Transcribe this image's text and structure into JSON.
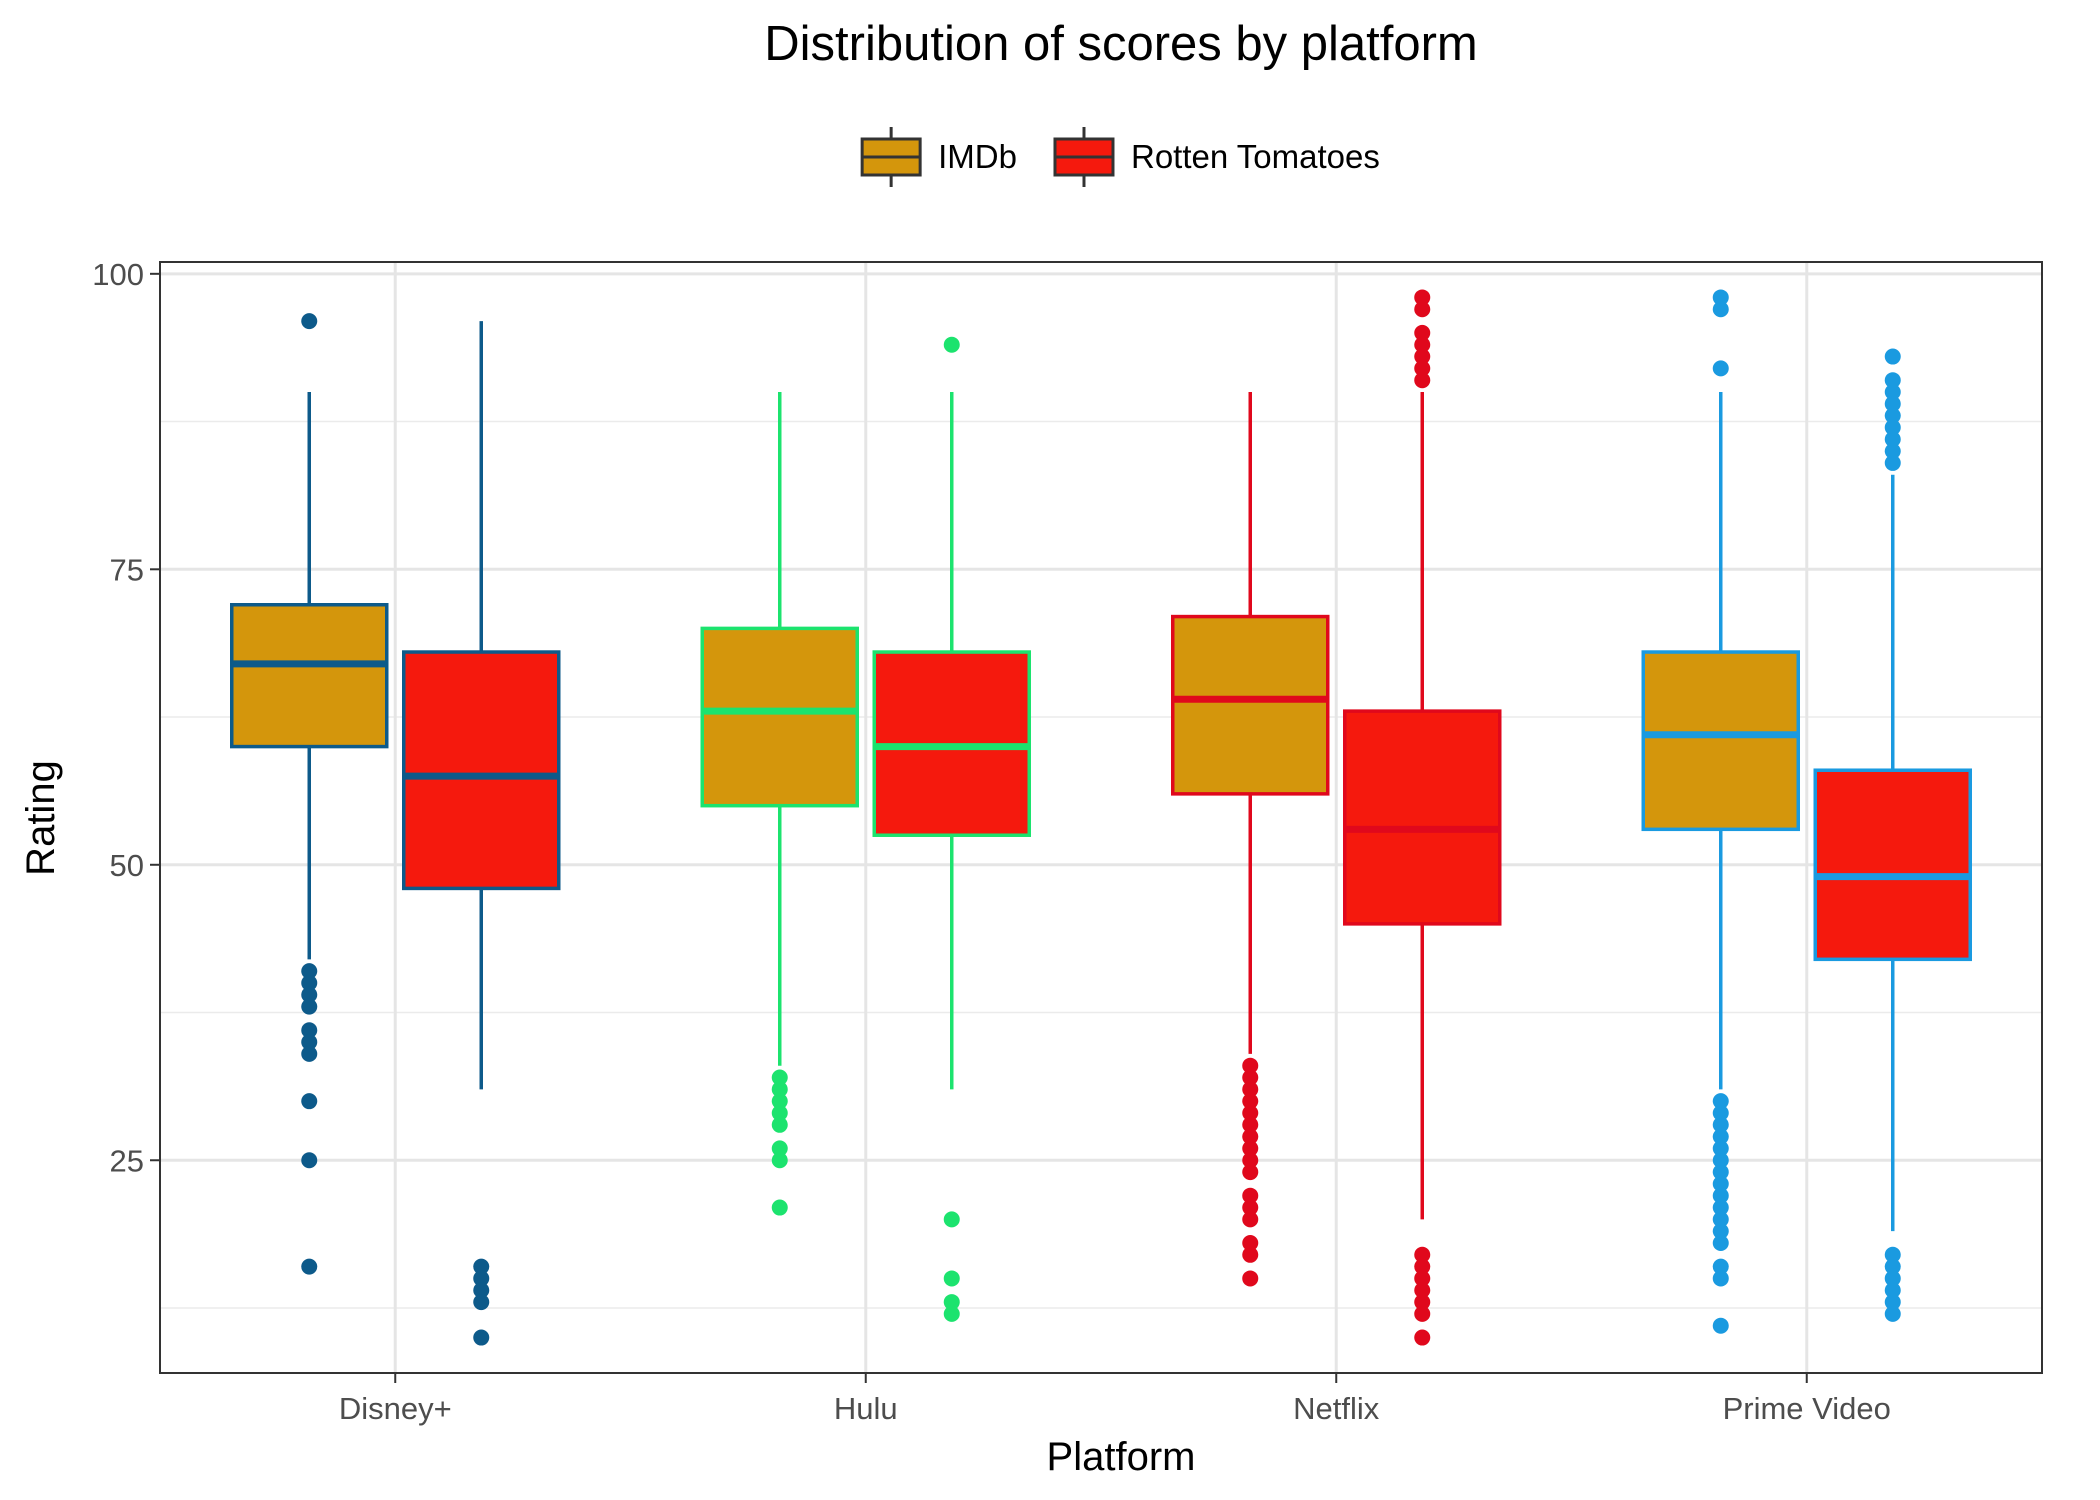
{
  "chart_data": {
    "type": "boxplot",
    "title": "Distribution of scores by platform",
    "xlabel": "Platform",
    "ylabel": "Rating",
    "ylim": [
      7,
      101
    ],
    "yticks": [
      25,
      50,
      75,
      100
    ],
    "categories": [
      "Disney+",
      "Hulu",
      "Netflix",
      "Prime Video"
    ],
    "legend": {
      "position": "top",
      "entries": [
        {
          "name": "IMDb",
          "fill": "#D4960C"
        },
        {
          "name": "Rotten Tomatoes",
          "fill": "#F5190D"
        }
      ]
    },
    "platform_colors": {
      "Disney+": "#0D5A8A",
      "Hulu": "#1CE36E",
      "Netflix": "#E0081C",
      "Prime Video": "#1A9AE0"
    },
    "grid": true,
    "series": [
      {
        "name": "IMDb",
        "fill": "#D4960C",
        "boxes": [
          {
            "category": "Disney+",
            "whisker_low": 42,
            "q1": 60,
            "median": 67,
            "q3": 72,
            "whisker_high": 90,
            "outliers": [
              96,
              41,
              40,
              39,
              38,
              36,
              35,
              34,
              30,
              25,
              16
            ]
          },
          {
            "category": "Hulu",
            "whisker_low": 33,
            "q1": 55,
            "median": 63,
            "q3": 70,
            "whisker_high": 90,
            "outliers": [
              32,
              31,
              30,
              29,
              28,
              26,
              25,
              21
            ]
          },
          {
            "category": "Netflix",
            "whisker_low": 34,
            "q1": 56,
            "median": 64,
            "q3": 71,
            "whisker_high": 90,
            "outliers": [
              33,
              32,
              31,
              30,
              29,
              28,
              27,
              26,
              25,
              24,
              22,
              21,
              20,
              18,
              17,
              15
            ]
          },
          {
            "category": "Prime Video",
            "whisker_low": 31,
            "q1": 53,
            "median": 61,
            "q3": 68,
            "whisker_high": 90,
            "outliers": [
              98,
              97,
              92,
              30,
              29,
              28,
              27,
              26,
              25,
              24,
              23,
              22,
              21,
              20,
              19,
              18,
              16,
              15,
              11
            ]
          }
        ]
      },
      {
        "name": "Rotten Tomatoes",
        "fill": "#F5190D",
        "boxes": [
          {
            "category": "Disney+",
            "whisker_low": 31,
            "q1": 48,
            "median": 57.5,
            "q3": 68,
            "whisker_high": 96,
            "outliers": [
              16,
              15,
              14,
              13,
              10
            ]
          },
          {
            "category": "Hulu",
            "whisker_low": 31,
            "q1": 52.5,
            "median": 60,
            "q3": 68,
            "whisker_high": 90,
            "outliers": [
              94,
              20,
              15,
              13,
              12
            ]
          },
          {
            "category": "Netflix",
            "whisker_low": 20,
            "q1": 45,
            "median": 53,
            "q3": 63,
            "whisker_high": 90,
            "outliers": [
              98,
              97,
              95,
              94,
              93,
              92,
              91,
              17,
              16,
              15,
              14,
              13,
              12,
              10
            ]
          },
          {
            "category": "Prime Video",
            "whisker_low": 19,
            "q1": 42,
            "median": 49,
            "q3": 58,
            "whisker_high": 83,
            "outliers": [
              93,
              91,
              90,
              89,
              88,
              87,
              86,
              85,
              84,
              17,
              16,
              15,
              14,
              13,
              12
            ]
          }
        ]
      }
    ]
  }
}
